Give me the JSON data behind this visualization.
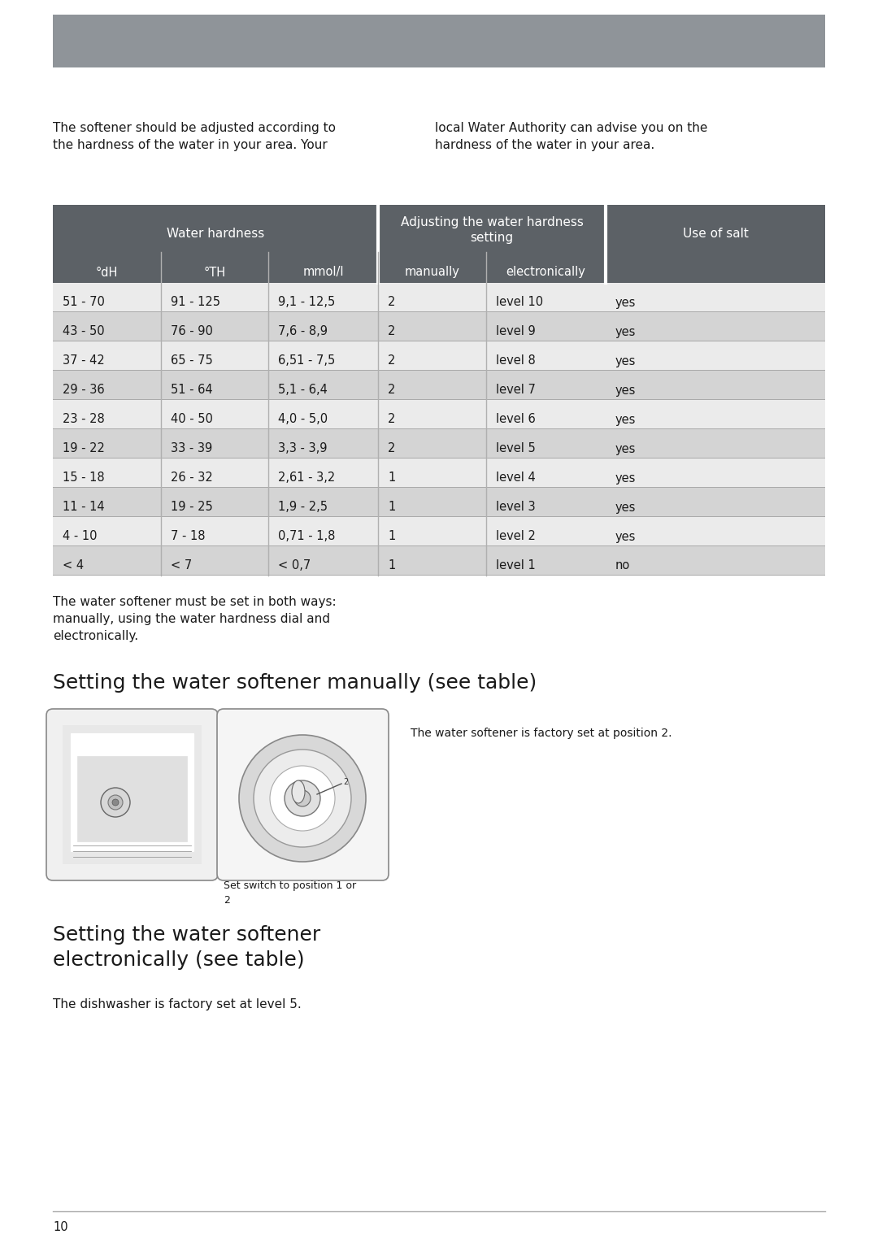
{
  "header_bar_color": "#8f9499",
  "bg_color": "#ffffff",
  "top_text_left": "The softener should be adjusted according to\nthe hardness of the water in your area. Your",
  "top_text_right": "local Water Authority can advise you on the\nhardness of the water in your area.",
  "table_header_color": "#5c6166",
  "table_row_colors": [
    "#ebebeb",
    "#d4d4d4"
  ],
  "table_data": [
    [
      "51 - 70",
      "91 - 125",
      "9,1 - 12,5",
      "2",
      "level 10",
      "yes"
    ],
    [
      "43 - 50",
      "76 - 90",
      "7,6 - 8,9",
      "2",
      "level 9",
      "yes"
    ],
    [
      "37 - 42",
      "65 - 75",
      "6,51 - 7,5",
      "2",
      "level 8",
      "yes"
    ],
    [
      "29 - 36",
      "51 - 64",
      "5,1 - 6,4",
      "2",
      "level 7",
      "yes"
    ],
    [
      "23 - 28",
      "40 - 50",
      "4,0 - 5,0",
      "2",
      "level 6",
      "yes"
    ],
    [
      "19 - 22",
      "33 - 39",
      "3,3 - 3,9",
      "2",
      "level 5",
      "yes"
    ],
    [
      "15 - 18",
      "26 - 32",
      "2,61 - 3,2",
      "1",
      "level 4",
      "yes"
    ],
    [
      "11 - 14",
      "19 - 25",
      "1,9 - 2,5",
      "1",
      "level 3",
      "yes"
    ],
    [
      "4 - 10",
      "7 - 18",
      "0,71 - 1,8",
      "1",
      "level 2",
      "yes"
    ],
    [
      "< 4",
      "< 7",
      "< 0,7",
      "1",
      "level 1",
      "no"
    ]
  ],
  "below_table_text": "The water softener must be set in both ways:\nmanually, using the water hardness dial and\nelectronically.",
  "section1_title": "Setting the water softener manually (see table)",
  "section1_text": "The water softener is factory set at position 2.",
  "section1_img_caption": "Set switch to position 1 or\n2",
  "section2_title": "Setting the water softener\nelectronically (see table)",
  "section2_text": "The dishwasher is factory set at level 5.",
  "footer_text": "10",
  "footer_line_color": "#aaaaaa",
  "text_color": "#1a1a1a",
  "white": "#ffffff"
}
